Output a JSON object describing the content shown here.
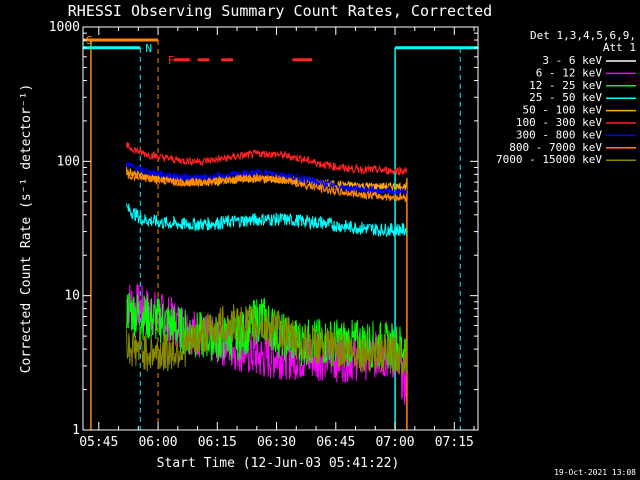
{
  "chart_data": {
    "type": "line",
    "title": "RHESSI Observing Summary Count Rates, Corrected",
    "xlabel": "Start Time (12-Jun-03 05:41:22)",
    "ylabel": "Corrected Count Rate (s⁻¹ detector⁻¹)",
    "y_scale": "log",
    "ylim": [
      1,
      1000
    ],
    "xlim_minutes_after_0541": [
      0,
      100
    ],
    "y_ticks": [
      {
        "value": 1,
        "label": "1"
      },
      {
        "value": 10,
        "label": "10"
      },
      {
        "value": 100,
        "label": "100"
      },
      {
        "value": 1000,
        "label": "1000"
      }
    ],
    "x_ticks": [
      {
        "value": 4,
        "label": "05:45"
      },
      {
        "value": 19,
        "label": "06:00"
      },
      {
        "value": 34,
        "label": "06:15"
      },
      {
        "value": 49,
        "label": "06:30"
      },
      {
        "value": 64,
        "label": "06:45"
      },
      {
        "value": 79,
        "label": "07:00"
      },
      {
        "value": 94,
        "label": "07:15"
      }
    ],
    "legend_header_lines": [
      "Det 1,3,4,5,6,9,",
      "Att 1"
    ],
    "series": [
      {
        "name": "3 - 6 keV",
        "color": "#ffffff",
        "values": []
      },
      {
        "name": "6 - 12 keV",
        "color": "#ff00ff",
        "t": [
          11,
          15,
          20,
          25,
          30,
          35,
          40,
          45,
          50,
          55,
          60,
          65,
          70,
          75,
          79,
          82
        ],
        "values": [
          9,
          8,
          7,
          6,
          5,
          4.5,
          4,
          3.5,
          3.6,
          3.5,
          3.5,
          3.4,
          3.5,
          3.6,
          3.5,
          2
        ]
      },
      {
        "name": "12 - 25 keV",
        "color": "#00ff00",
        "t": [
          11,
          15,
          20,
          25,
          30,
          35,
          40,
          45,
          50,
          55,
          60,
          65,
          70,
          75,
          79,
          82
        ],
        "values": [
          8,
          7,
          6.5,
          5.5,
          5,
          4.8,
          5,
          7,
          5,
          4.5,
          4.5,
          4.5,
          4.4,
          4.3,
          4.2,
          4
        ]
      },
      {
        "name": "25 - 50 keV",
        "color": "#00ffff",
        "t": [
          11,
          15,
          20,
          25,
          30,
          35,
          40,
          45,
          50,
          55,
          60,
          65,
          70,
          75,
          79,
          82
        ],
        "values": [
          45,
          37,
          35,
          34,
          34,
          35,
          36,
          37,
          37,
          36,
          35,
          33,
          32,
          31,
          31,
          31
        ]
      },
      {
        "name": "50 - 100 keV",
        "color": "#ffaa00",
        "t": [
          11,
          15,
          20,
          25,
          30,
          35,
          40,
          45,
          50,
          55,
          60,
          65,
          70,
          75,
          79,
          82
        ],
        "values": [
          85,
          78,
          74,
          71,
          70,
          71,
          73,
          74,
          73,
          71,
          69,
          67,
          66,
          65,
          65,
          65
        ]
      },
      {
        "name": "100 - 300 keV",
        "color": "#ff2222",
        "t": [
          11,
          15,
          20,
          25,
          30,
          35,
          40,
          45,
          50,
          55,
          60,
          65,
          70,
          75,
          79,
          82
        ],
        "values": [
          130,
          115,
          107,
          101,
          100,
          104,
          110,
          114,
          112,
          105,
          96,
          90,
          87,
          86,
          85,
          85
        ]
      },
      {
        "name": "300 - 800 keV",
        "color": "#0000ff",
        "t": [
          11,
          15,
          20,
          25,
          30,
          35,
          40,
          45,
          50,
          55,
          60,
          65,
          70,
          75,
          79,
          82
        ],
        "values": [
          95,
          85,
          80,
          76,
          75,
          77,
          80,
          82,
          80,
          75,
          69,
          64,
          62,
          60,
          59,
          59
        ]
      },
      {
        "name": "800 - 7000 keV",
        "color": "#ff8800",
        "t": [
          11,
          15,
          20,
          25,
          30,
          35,
          40,
          45,
          50,
          55,
          60,
          65,
          70,
          75,
          79,
          82
        ],
        "values": [
          80,
          75,
          72,
          70,
          70,
          72,
          75,
          75,
          73,
          68,
          63,
          59,
          57,
          55,
          54,
          54
        ]
      },
      {
        "name": "7000 - 15000 keV",
        "color": "#888800",
        "t": [
          11,
          15,
          20,
          25,
          30,
          35,
          40,
          45,
          50,
          55,
          60,
          65,
          70,
          75,
          79,
          82
        ],
        "values": [
          4.2,
          3.9,
          3.7,
          4,
          5,
          6,
          6.2,
          6,
          5.5,
          4.5,
          4.2,
          4,
          3.8,
          3.7,
          3.6,
          3.5
        ]
      }
    ],
    "annotations": [
      {
        "label": "S",
        "color": "#ff8800",
        "x": 0.8,
        "y": 800
      },
      {
        "label": "N",
        "color": "#00ffff",
        "x": 15.8,
        "y": 700
      },
      {
        "label": "F",
        "color": "#ff2222",
        "x": 21.5,
        "y": 570
      }
    ],
    "overlays": {
      "saa_orange": {
        "color": "#ff8800",
        "level": 800,
        "segments": [
          [
            0,
            19
          ]
        ],
        "verticals": [
          2,
          19
        ]
      },
      "night_cyan": {
        "color": "#00ffff",
        "level": 700,
        "segments": [
          [
            0,
            14.5
          ],
          [
            79,
            100
          ]
        ],
        "verticals": [
          14.5,
          79,
          95.5
        ]
      },
      "flare_red": {
        "color": "#ff2222",
        "level": 570,
        "segments": [
          [
            23,
            27
          ],
          [
            29,
            32
          ],
          [
            35,
            38
          ],
          [
            53,
            58
          ]
        ]
      }
    },
    "data_gap_end_minute": 82
  },
  "footer": {
    "timestamp": "19-Oct-2021 13:08"
  }
}
